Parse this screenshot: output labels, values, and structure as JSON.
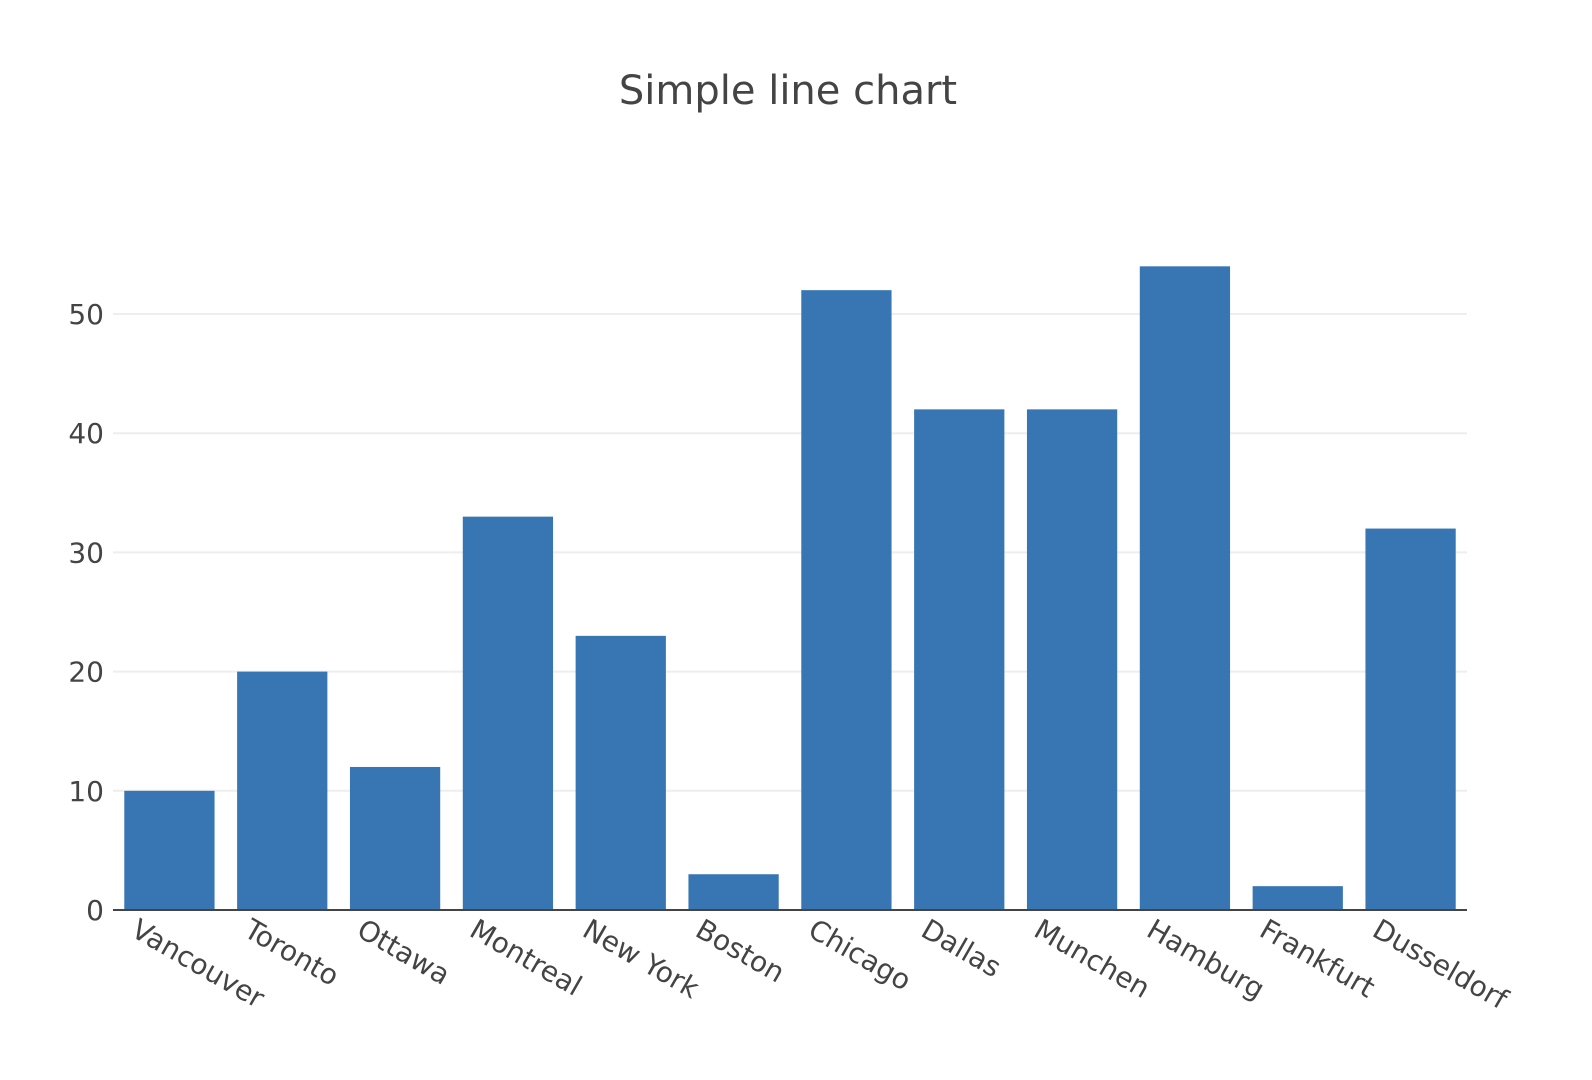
{
  "chart_data": {
    "type": "bar",
    "title": "Simple line chart",
    "xlabel": "",
    "ylabel": "",
    "categories": [
      "Vancouver",
      "Toronto",
      "Ottawa",
      "Montreal",
      "New York",
      "Boston",
      "Chicago",
      "Dallas",
      "Munchen",
      "Hamburg",
      "Frankfurt",
      "Dusseldorf"
    ],
    "values": [
      10,
      20,
      12,
      33,
      23,
      3,
      52,
      42,
      42,
      54,
      2,
      32
    ],
    "ylim": [
      0,
      56
    ],
    "yticks": [
      "0",
      "10",
      "20",
      "30",
      "40",
      "50"
    ],
    "grid": true,
    "legend": "none",
    "bar_color": "#3776b3"
  }
}
